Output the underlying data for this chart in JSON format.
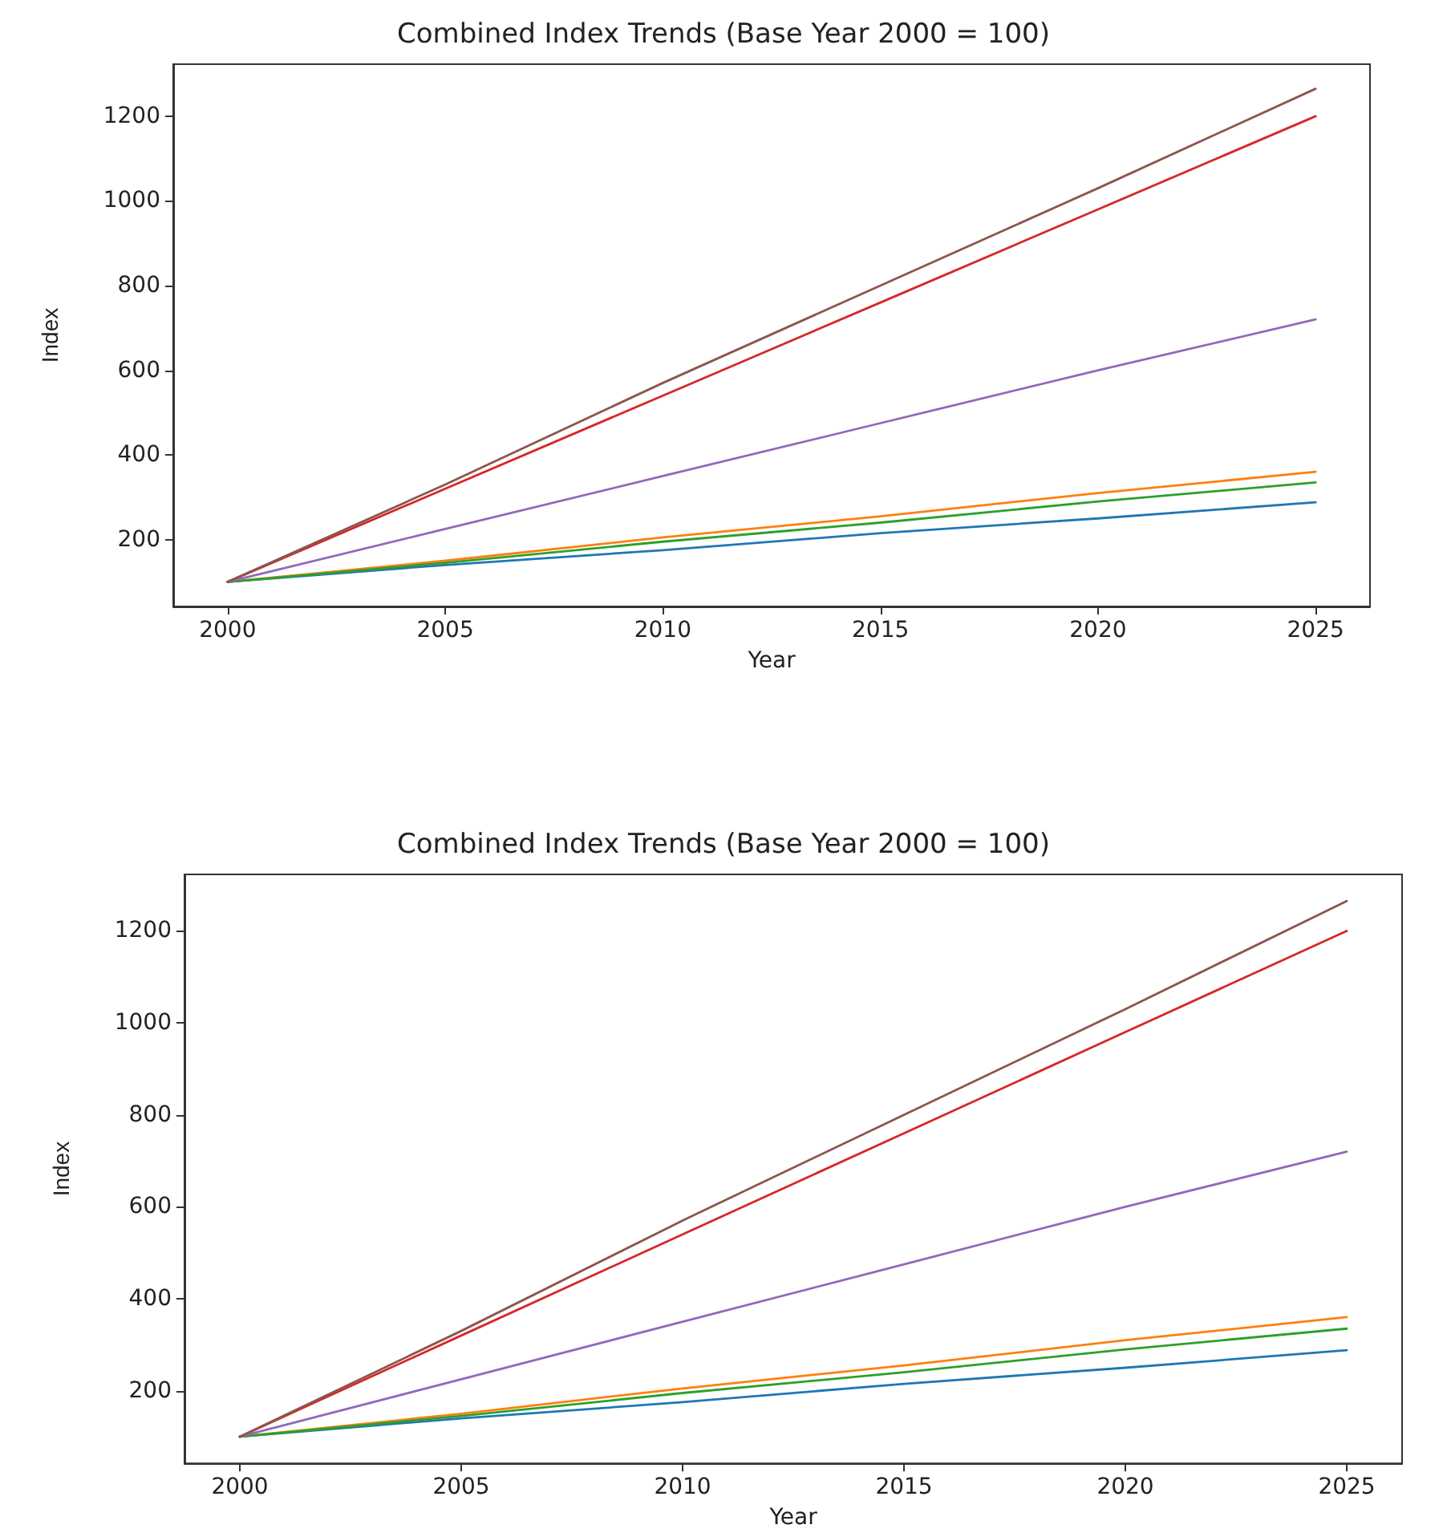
{
  "chart_data": [
    {
      "type": "line",
      "title": "Combined Index Trends (Base Year 2000 = 100)",
      "xlabel": "Year",
      "ylabel": "Index",
      "x": [
        2000,
        2005,
        2010,
        2015,
        2020,
        2025
      ],
      "series": [
        {
          "color": "#1f77b4",
          "values": [
            100,
            140,
            175,
            215,
            250,
            288
          ]
        },
        {
          "color": "#ff7f0e",
          "values": [
            100,
            150,
            205,
            255,
            310,
            360
          ]
        },
        {
          "color": "#2ca02c",
          "values": [
            100,
            145,
            195,
            240,
            290,
            335
          ]
        },
        {
          "color": "#d62728",
          "values": [
            100,
            320,
            540,
            760,
            980,
            1200
          ]
        },
        {
          "color": "#9467bd",
          "values": [
            100,
            225,
            350,
            475,
            600,
            720
          ]
        },
        {
          "color": "#8c564b",
          "values": [
            100,
            330,
            570,
            800,
            1030,
            1265
          ]
        }
      ],
      "xlim": [
        1998.75,
        2026.25
      ],
      "xticks": [
        2000,
        2005,
        2010,
        2015,
        2020,
        2025
      ],
      "ylim": [
        42,
        1323
      ],
      "yticks": [
        200,
        400,
        600,
        800,
        1000,
        1200
      ],
      "line_style": "solid"
    },
    {
      "type": "line",
      "title": "Combined Index Trends (Base Year 2000 = 100)",
      "xlabel": "Year",
      "ylabel": "Index",
      "x": [
        2000,
        2005,
        2010,
        2015,
        2020,
        2025
      ],
      "series": [
        {
          "color": "#1f77b4",
          "values": [
            100,
            140,
            175,
            215,
            250,
            288
          ]
        },
        {
          "color": "#ff7f0e",
          "values": [
            100,
            150,
            205,
            255,
            310,
            360
          ]
        },
        {
          "color": "#2ca02c",
          "values": [
            100,
            145,
            195,
            240,
            290,
            335
          ]
        },
        {
          "color": "#d62728",
          "values": [
            100,
            320,
            540,
            760,
            980,
            1200
          ]
        },
        {
          "color": "#9467bd",
          "values": [
            100,
            225,
            350,
            475,
            600,
            720
          ]
        },
        {
          "color": "#8c564b",
          "values": [
            100,
            330,
            570,
            800,
            1030,
            1265
          ]
        }
      ],
      "xlim": [
        1998.75,
        2026.25
      ],
      "xticks": [
        2000,
        2005,
        2010,
        2015,
        2020,
        2025
      ],
      "ylim": [
        42,
        1323
      ],
      "yticks": [
        200,
        400,
        600,
        800,
        1000,
        1200
      ],
      "line_style": "solid"
    }
  ]
}
